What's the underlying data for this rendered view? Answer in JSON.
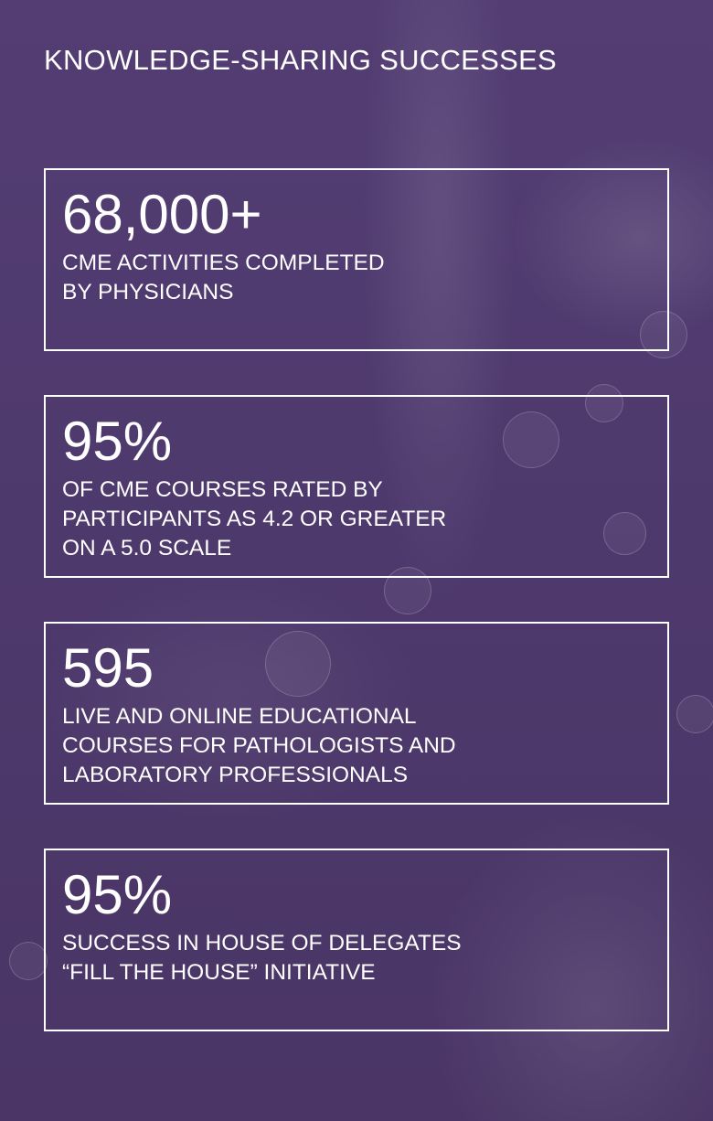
{
  "title": "KNOWLEDGE-SHARING SUCCESSES",
  "stats": [
    {
      "value": "68,000+",
      "label": "CME ACTIVITIES COMPLETED\nBY PHYSICIANS"
    },
    {
      "value": "95%",
      "label": "OF CME COURSES RATED BY\nPARTICIPANTS AS 4.2 OR GREATER\nON A 5.0 SCALE"
    },
    {
      "value": "595",
      "label": "LIVE AND ONLINE EDUCATIONAL\nCOURSES FOR PATHOLOGISTS AND\nLABORATORY PROFESSIONALS"
    },
    {
      "value": "95%",
      "label": "SUCCESS IN HOUSE OF DELEGATES\n“FILL THE HOUSE” INITIATIVE"
    }
  ],
  "colors": {
    "background": "#4f3a6e",
    "text": "#ffffff",
    "border": "#ffffff"
  }
}
